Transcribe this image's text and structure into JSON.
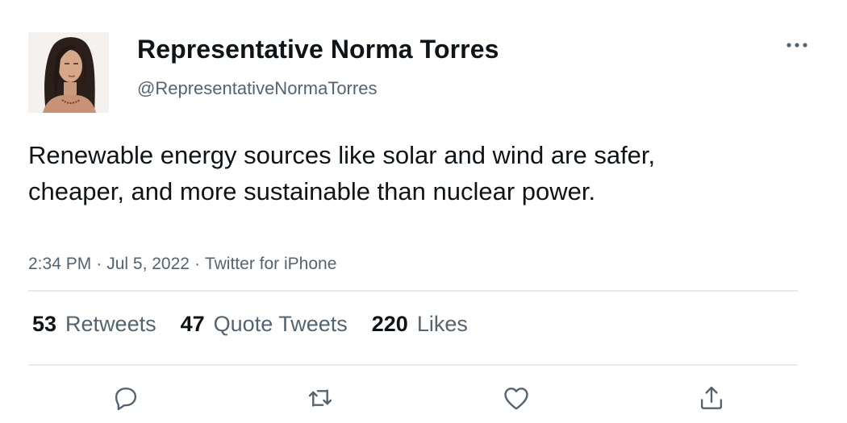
{
  "user": {
    "display_name": "Representative Norma Torres",
    "handle": "@RepresentativeNormaTorres"
  },
  "tweet": {
    "text": "Renewable energy sources like solar and wind are safer, cheaper, and more sustainable than nuclear power.",
    "time": "2:34 PM",
    "date": "Jul 5, 2022",
    "source": "Twitter for iPhone",
    "separator": "·"
  },
  "stats": {
    "retweets_count": "53",
    "retweets_label": "Retweets",
    "quotes_count": "47",
    "quotes_label": "Quote Tweets",
    "likes_count": "220",
    "likes_label": "Likes"
  },
  "icons": {
    "more": "more-dots-icon",
    "reply": "reply-bubble-icon",
    "retweet": "retweet-arrows-icon",
    "like": "heart-icon",
    "share": "share-upload-icon"
  },
  "colors": {
    "text_primary": "#0f1419",
    "text_secondary": "#536471",
    "divider": "#e6e9eb"
  }
}
